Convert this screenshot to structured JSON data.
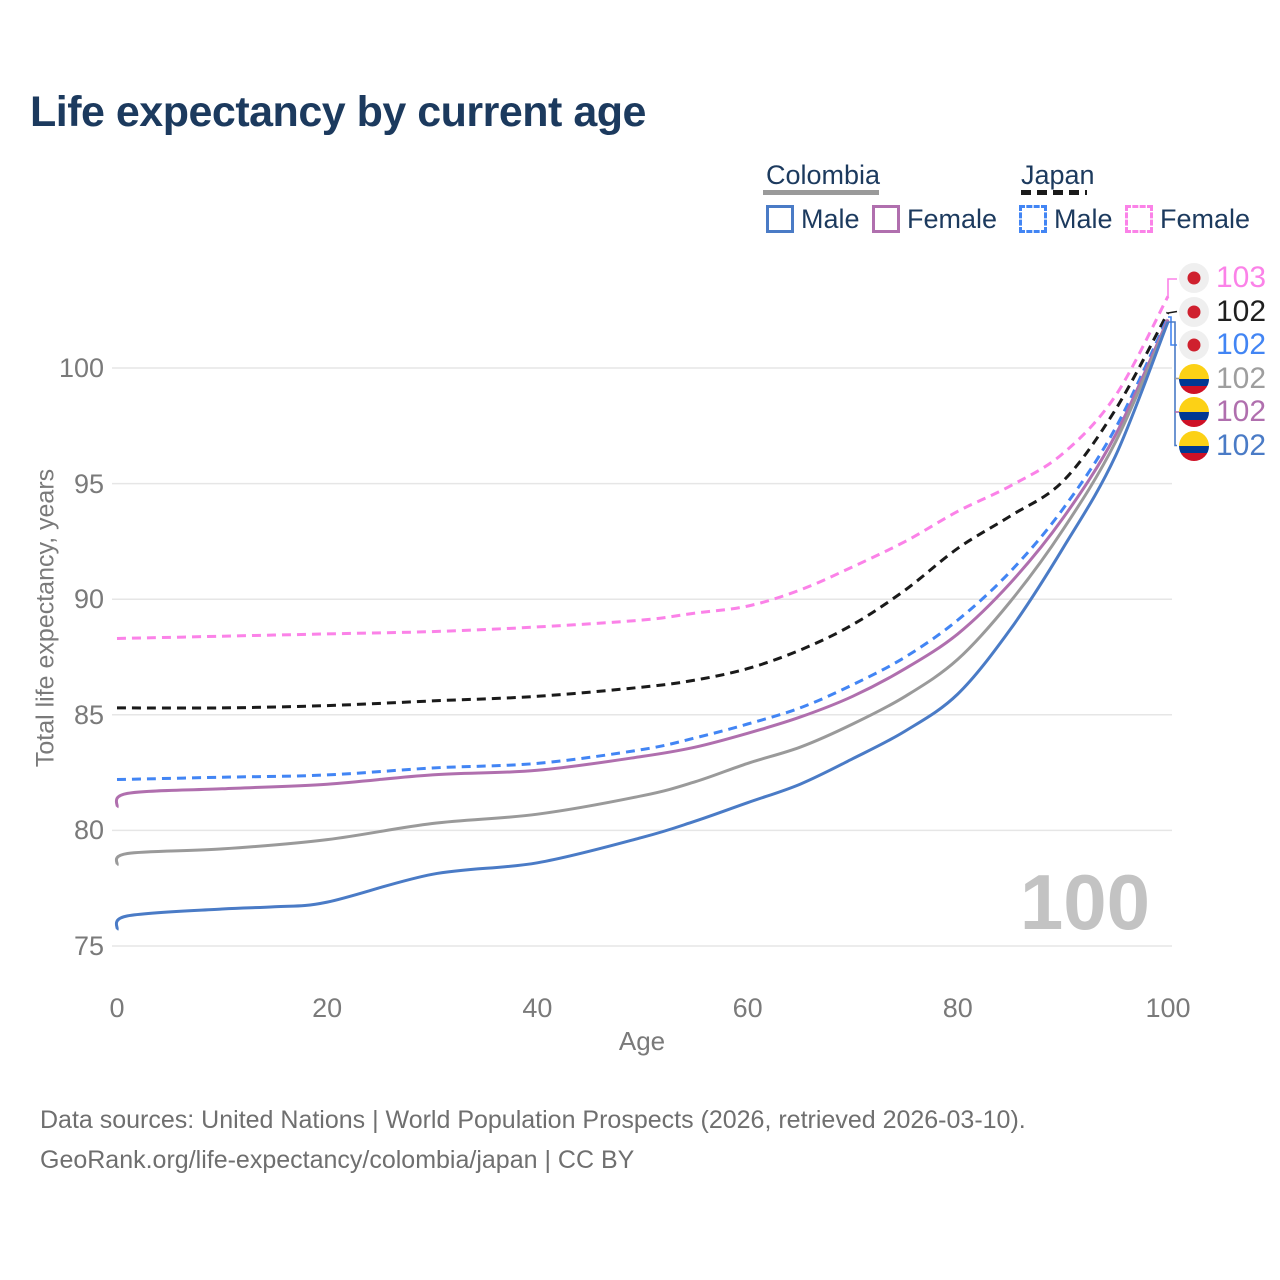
{
  "title": "Life expectancy by current age",
  "watermark_age": "100",
  "legend": {
    "colombia": {
      "label": "Colombia",
      "male": "Male",
      "female": "Female"
    },
    "japan": {
      "label": "Japan",
      "male": "Male",
      "female": "Female"
    }
  },
  "footer": {
    "line1": "Data sources: United Nations | World Population Prospects (2026, retrieved 2026-03-10).",
    "line2": "GeoRank.org/life-expectancy/colombia/japan | CC BY"
  },
  "theme": {
    "title_color": "#1c3a5e",
    "axis_text_color": "#7a7a7a",
    "grid_color": "#e6e6e6",
    "watermark_color": "#c3c3c3",
    "footer_color": "#6f6f6f",
    "colombia_underline_color": "#9a9a9a",
    "japan_underline_color": "#1a1a1a",
    "japan_flag": {
      "bg": "#efefef",
      "dot": "#cf202e"
    },
    "colombia_flag": {
      "yellow": "#FCD116",
      "blue": "#003893",
      "red": "#CE1126"
    }
  },
  "chart_data": {
    "type": "line",
    "title": "Life expectancy by current age",
    "xlabel": "Age",
    "ylabel": "Total life expectancy, years",
    "xlim": [
      0,
      100
    ],
    "ylim": [
      75,
      103.5
    ],
    "x_ticks": [
      0,
      20,
      40,
      60,
      80,
      100
    ],
    "y_ticks": [
      75,
      80,
      85,
      90,
      95,
      100
    ],
    "grid": "horizontal",
    "legend_position": "top-right",
    "series": [
      {
        "id": "japan-female",
        "name": "Japan Female",
        "country": "Japan",
        "sex": "Female",
        "style": "dashed",
        "color": "#fb82e8",
        "x": [
          0,
          10,
          20,
          30,
          40,
          50,
          55,
          60,
          65,
          70,
          75,
          80,
          85,
          90,
          95,
          100
        ],
        "y": [
          88.3,
          88.4,
          88.5,
          88.6,
          88.8,
          89.1,
          89.4,
          89.7,
          90.4,
          91.4,
          92.5,
          93.8,
          94.9,
          96.3,
          98.8,
          103.1
        ]
      },
      {
        "id": "japan-both",
        "name": "Japan Both sexes",
        "country": "Japan",
        "sex": "Both",
        "style": "dashed",
        "color": "#1a1a1a",
        "x": [
          0,
          10,
          20,
          30,
          40,
          50,
          55,
          60,
          65,
          70,
          75,
          80,
          85,
          90,
          95,
          100
        ],
        "y": [
          85.3,
          85.3,
          85.4,
          85.6,
          85.8,
          86.2,
          86.5,
          87.0,
          87.8,
          88.9,
          90.4,
          92.2,
          93.6,
          95.1,
          98.2,
          102.4
        ]
      },
      {
        "id": "japan-male",
        "name": "Japan Male",
        "country": "Japan",
        "sex": "Male",
        "style": "dashed",
        "color": "#4285f4",
        "x": [
          0,
          10,
          20,
          30,
          40,
          50,
          55,
          60,
          65,
          70,
          75,
          80,
          85,
          90,
          95,
          100
        ],
        "y": [
          82.2,
          82.3,
          82.4,
          82.7,
          82.9,
          83.5,
          84.0,
          84.6,
          85.3,
          86.3,
          87.5,
          89.1,
          91.2,
          93.9,
          97.4,
          102.2
        ]
      },
      {
        "id": "colombia-female",
        "name": "Colombia Female",
        "country": "Colombia",
        "sex": "Female",
        "style": "solid",
        "color": "#b06fae",
        "x": [
          0,
          1,
          10,
          20,
          30,
          40,
          50,
          55,
          60,
          65,
          70,
          75,
          80,
          85,
          90,
          95,
          100
        ],
        "y": [
          81.0,
          81.6,
          81.8,
          82.0,
          82.4,
          82.6,
          83.2,
          83.6,
          84.2,
          84.9,
          85.8,
          87.0,
          88.5,
          90.7,
          93.5,
          97.1,
          102.1
        ]
      },
      {
        "id": "colombia-both",
        "name": "Colombia Both sexes",
        "country": "Colombia",
        "sex": "Both",
        "style": "solid",
        "color": "#9a9a9a",
        "x": [
          0,
          1,
          10,
          20,
          30,
          40,
          50,
          55,
          60,
          65,
          70,
          75,
          80,
          85,
          90,
          95,
          100
        ],
        "y": [
          78.5,
          79.0,
          79.2,
          79.6,
          80.3,
          80.7,
          81.5,
          82.1,
          82.9,
          83.6,
          84.6,
          85.8,
          87.4,
          89.9,
          93.0,
          96.8,
          102.0
        ]
      },
      {
        "id": "colombia-male",
        "name": "Colombia Male",
        "country": "Colombia",
        "sex": "Male",
        "style": "solid",
        "color": "#4a7bc6",
        "x": [
          0,
          1,
          10,
          15,
          20,
          30,
          40,
          50,
          55,
          60,
          65,
          70,
          75,
          80,
          85,
          90,
          95,
          100
        ],
        "y": [
          75.7,
          76.3,
          76.6,
          76.7,
          76.9,
          78.1,
          78.6,
          79.7,
          80.4,
          81.2,
          82.0,
          83.1,
          84.3,
          85.9,
          88.7,
          92.2,
          96.2,
          102.0
        ]
      }
    ],
    "end_labels": [
      {
        "value": "103",
        "flag": "japan",
        "series": "japan-female",
        "color": "#fb82e8"
      },
      {
        "value": "102",
        "flag": "japan",
        "series": "japan-both",
        "color": "#1f1f1f"
      },
      {
        "value": "102",
        "flag": "japan",
        "series": "japan-male",
        "color": "#4285f4"
      },
      {
        "value": "102",
        "flag": "colombia",
        "series": "colombia-both",
        "color": "#9e9e9e"
      },
      {
        "value": "102",
        "flag": "colombia",
        "series": "colombia-female",
        "color": "#b06fae"
      },
      {
        "value": "102",
        "flag": "colombia",
        "series": "colombia-male",
        "color": "#4a7bc6"
      }
    ]
  }
}
